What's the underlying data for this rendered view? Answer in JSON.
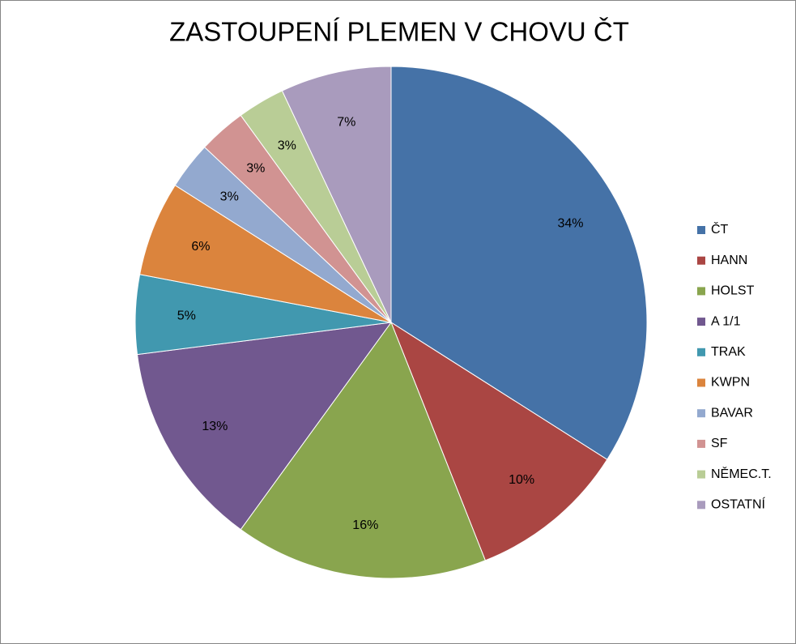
{
  "chart_data": {
    "type": "pie",
    "title": "ZASTOUPENÍ PLEMEN V CHOVU ČT",
    "categories": [
      "ČT",
      "HANN",
      "HOLST",
      "A 1/1",
      "TRAK",
      "KWPN",
      "BAVAR",
      "SF",
      "NĚMEC.T.",
      "OSTATNÍ"
    ],
    "values": [
      34,
      10,
      16,
      13,
      5,
      6,
      3,
      3,
      3,
      7
    ],
    "value_labels": [
      "34%",
      "10%",
      "16%",
      "13%",
      "5%",
      "6%",
      "3%",
      "3%",
      "3%",
      "7%"
    ],
    "colors": [
      "#4572a7",
      "#aa4643",
      "#89a54e",
      "#71588f",
      "#4198af",
      "#db843d",
      "#93a9cf",
      "#d19392",
      "#b9cd96",
      "#a99bbd"
    ],
    "legend": "right"
  }
}
